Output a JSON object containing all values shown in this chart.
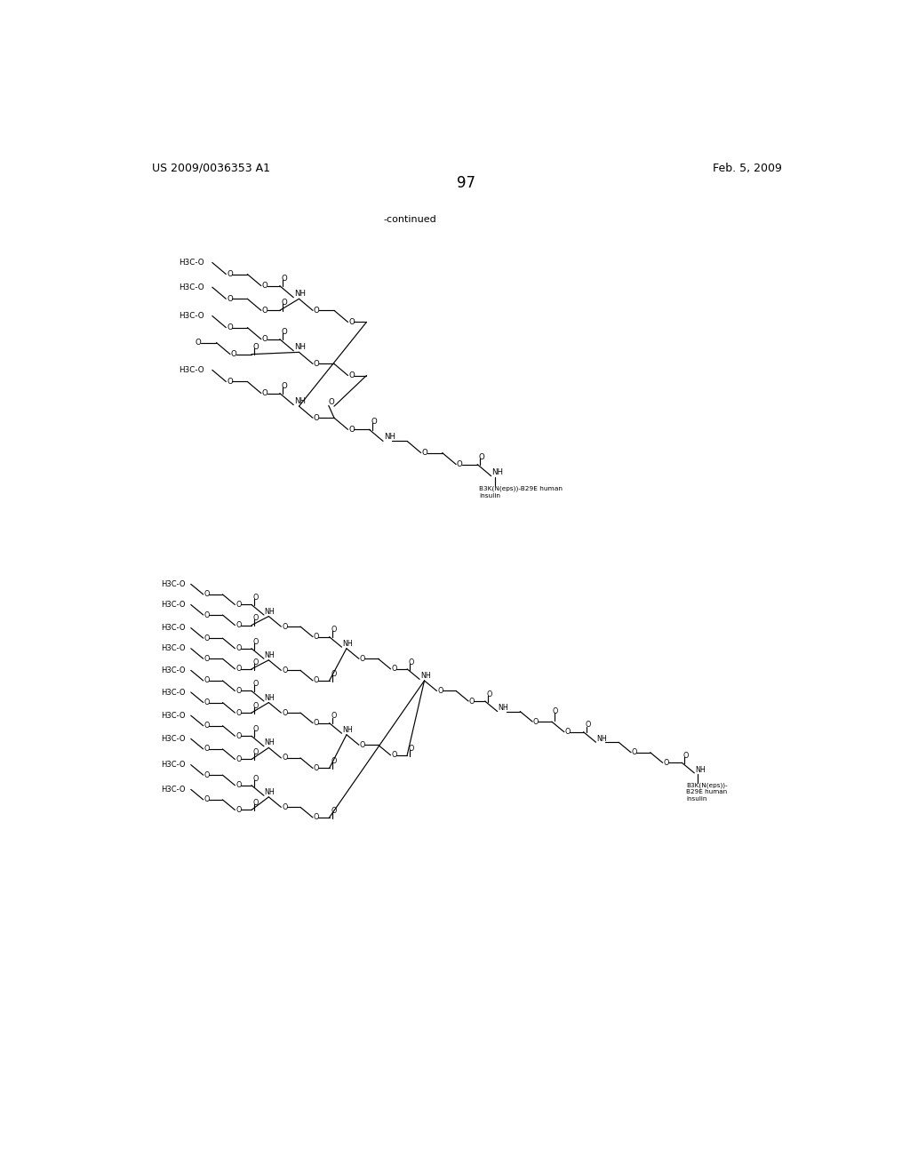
{
  "bg": "#ffffff",
  "header_left": "US 2009/0036353 A1",
  "header_right": "Feb. 5, 2009",
  "page_number": "97",
  "continued": "-continued",
  "label_top": "B3K(N(eps))-B29E human\ninsulin",
  "label_bot": "B3K(N(eps))-\nB29E human\ninsulin"
}
